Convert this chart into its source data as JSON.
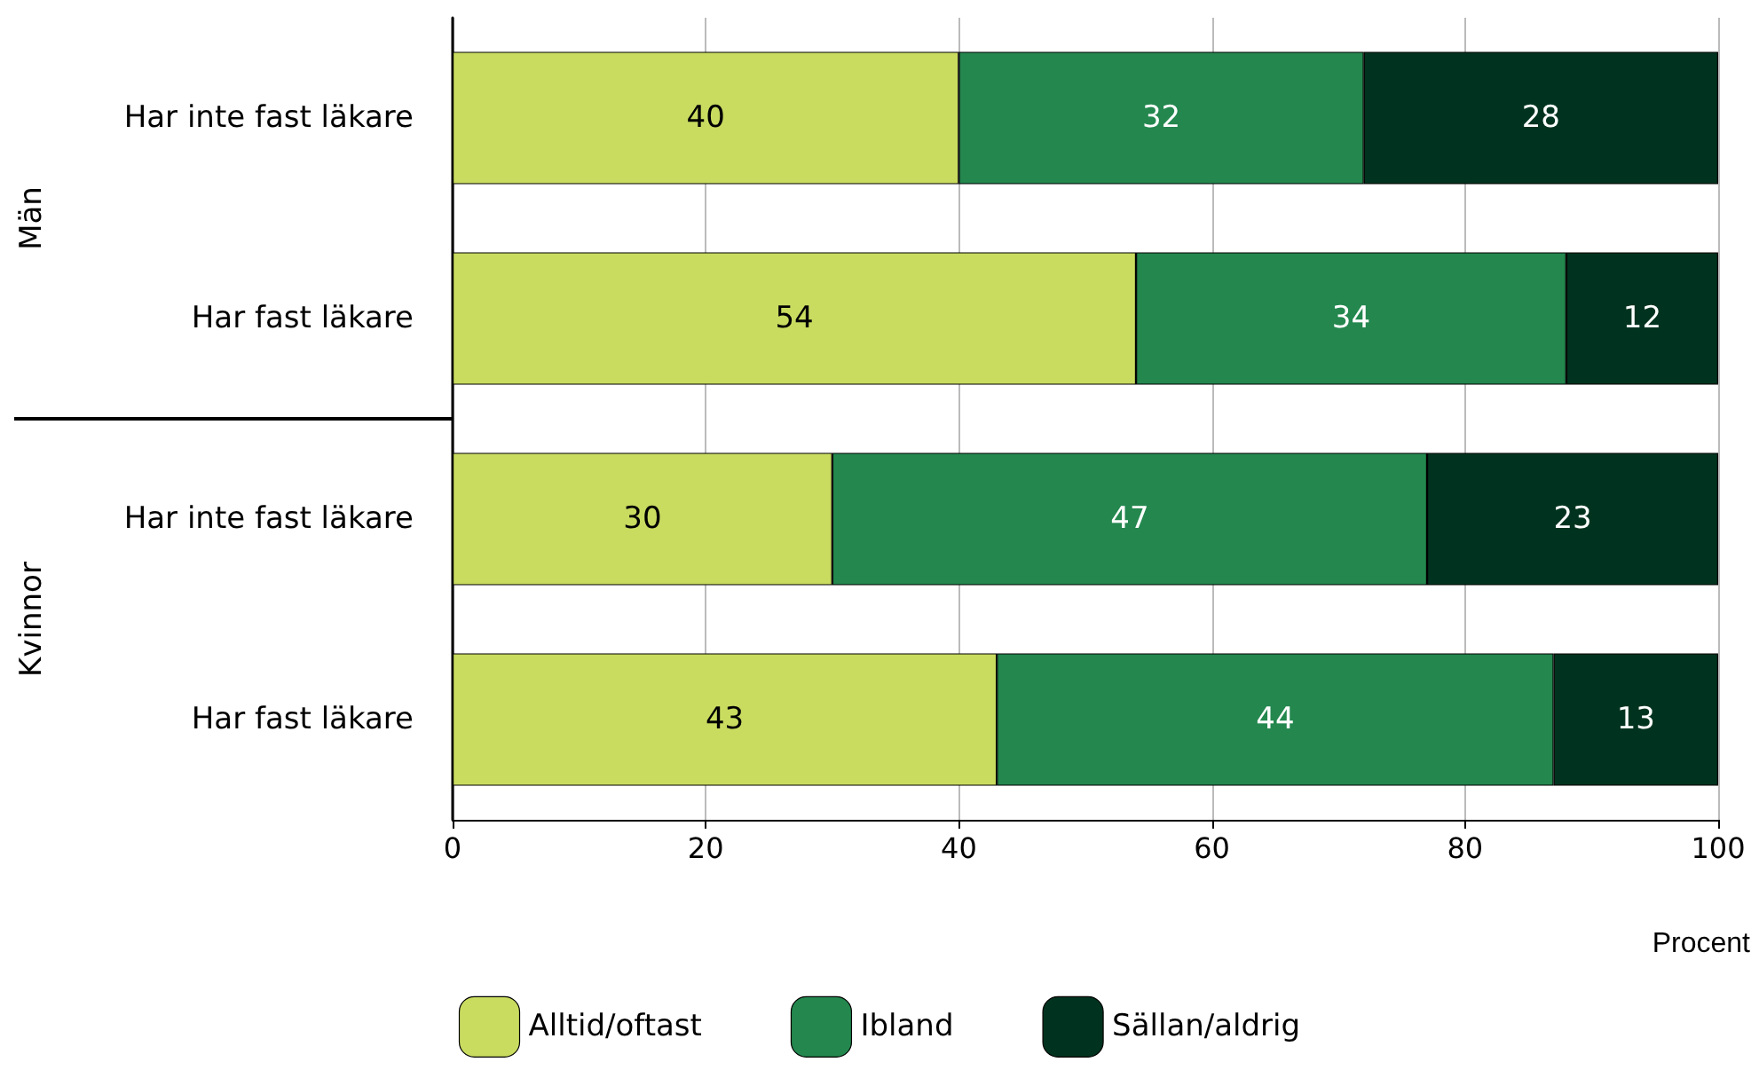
{
  "chart_data": {
    "type": "bar",
    "orientation": "horizontal",
    "stacked": true,
    "categories": [
      "Har inte fast läkare",
      "Har fast läkare",
      "Har inte fast läkare",
      "Har fast läkare"
    ],
    "series": [
      {
        "name": "Alltid/oftast",
        "color": "#c9dc60",
        "values": [
          40,
          54,
          30,
          43
        ]
      },
      {
        "name": "Ibland",
        "color": "#23874e",
        "values": [
          32,
          34,
          47,
          44
        ]
      },
      {
        "name": "Sällan/aldrig",
        "color": "#00331f",
        "values": [
          28,
          12,
          23,
          13
        ]
      }
    ],
    "xlim": [
      0,
      100
    ],
    "xticks": [
      0,
      20,
      40,
      60,
      80,
      100
    ],
    "xlabel": "Procent",
    "grid": "x",
    "legend": "bottom",
    "data_labels": true,
    "annotations": [
      "Män",
      "Kvinnor"
    ]
  }
}
